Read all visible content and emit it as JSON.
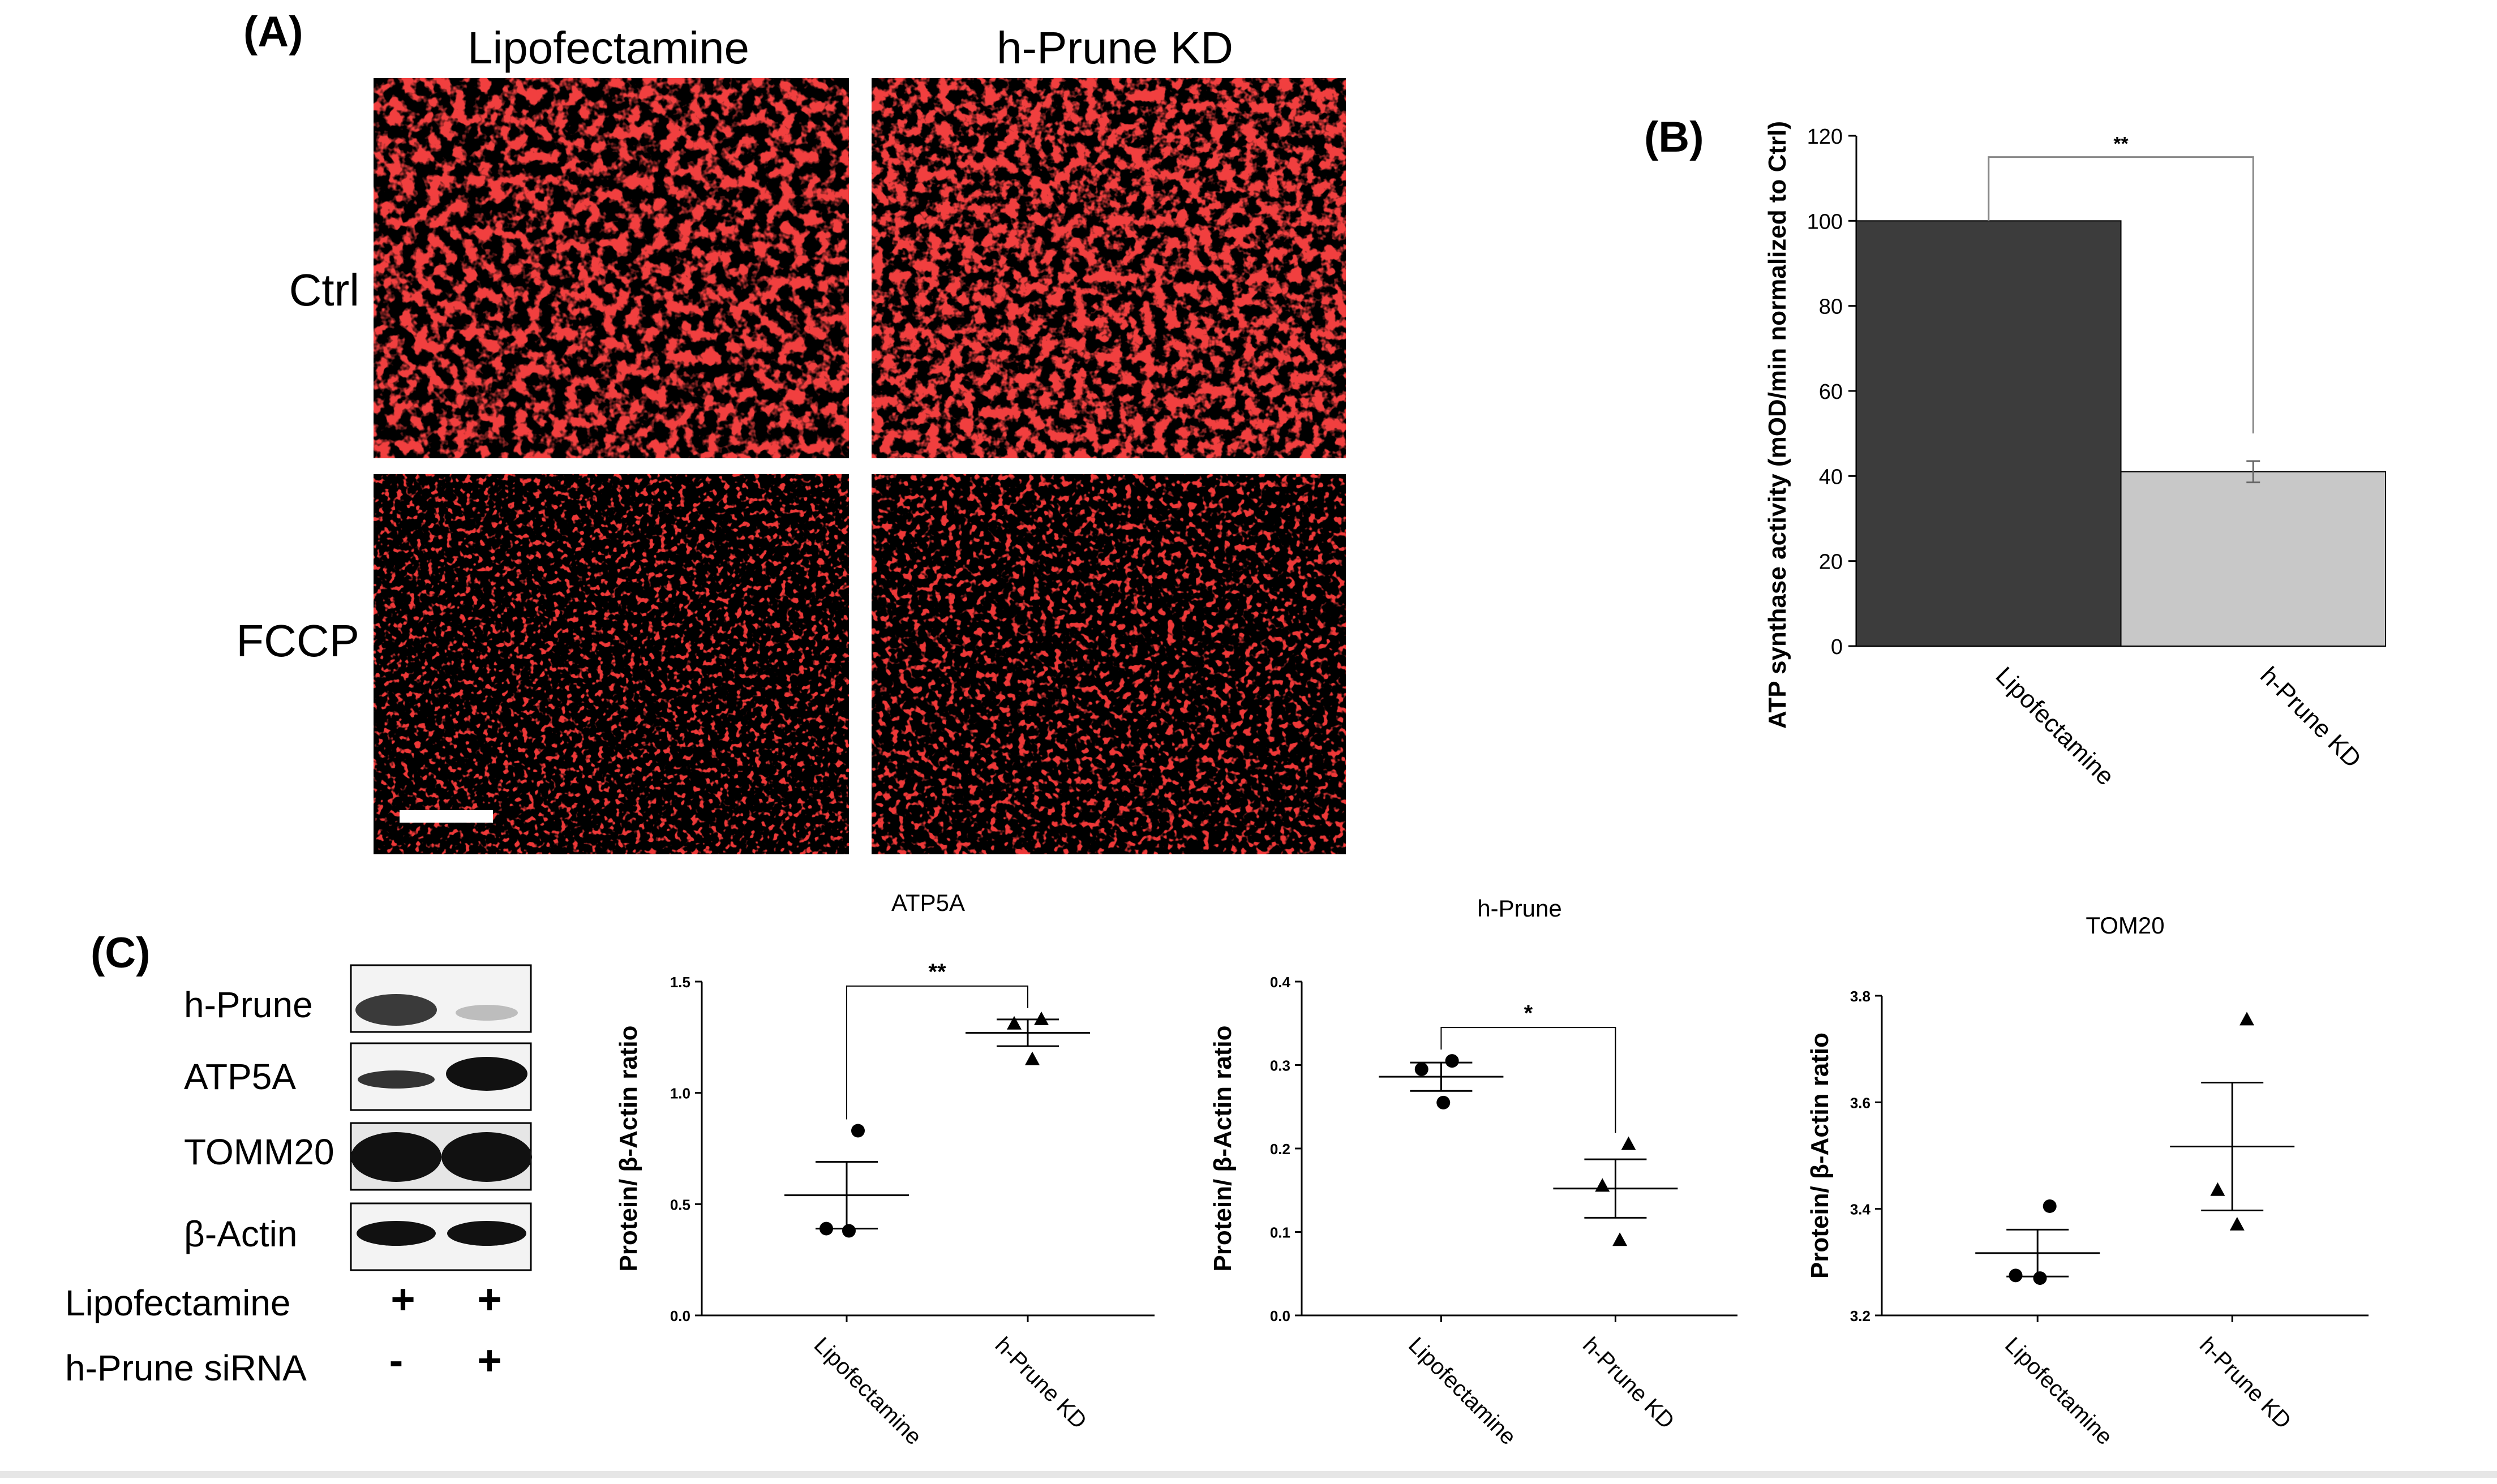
{
  "panel_a": {
    "label": "(A)",
    "columns": [
      "Lipofectamine",
      "h-Prune KD"
    ],
    "rows": [
      "Ctrl",
      "FCCP"
    ],
    "image_color": "#e01010"
  },
  "panel_b": {
    "label": "(B)"
  },
  "panel_c": {
    "label": "(C)",
    "blot_rows": [
      "h-Prune",
      "ATP5A",
      "TOMM20",
      "β-Actin"
    ],
    "treatments": [
      {
        "name": "Lipofectamine",
        "marks": [
          "+",
          "+"
        ]
      },
      {
        "name": "h-Prune siRNA",
        "marks": [
          "-",
          "+"
        ]
      }
    ]
  },
  "chart_data": [
    {
      "type": "bar",
      "panel": "B",
      "categories": [
        "Lipofectamine",
        "h-Prune KD"
      ],
      "values": [
        100,
        41
      ],
      "errors": [
        0,
        2.5
      ],
      "colors": [
        "#3c3c3c",
        "#c8c8c8"
      ],
      "title": "",
      "xlabel": "",
      "ylabel": "ATP synthase activity (mOD/min normalized to Ctrl)",
      "ylim": [
        0,
        120
      ],
      "yticks": [
        0,
        20,
        40,
        60,
        80,
        100,
        120
      ],
      "significance": "**",
      "grid": false
    },
    {
      "type": "scatter",
      "panel": "C-ATP5A",
      "title": "ATP5A",
      "ylabel": "Protein/ β-Actin ratio",
      "categories": [
        "Lipofectamine",
        "h-Prune KD"
      ],
      "ylim": [
        0,
        1.5
      ],
      "yticks": [
        0.0,
        0.5,
        1.0,
        1.5
      ],
      "ytick_labels": [
        "0.0",
        "0.5",
        "1.0",
        "1.5"
      ],
      "series": [
        {
          "category": "Lipofectamine",
          "marker": "circle",
          "points": [
            0.83,
            0.39,
            0.38
          ],
          "mean": 0.54,
          "sem": 0.15
        },
        {
          "category": "h-Prune KD",
          "marker": "triangle",
          "points": [
            1.33,
            1.31,
            1.15
          ],
          "mean": 1.27,
          "sem": 0.06
        }
      ],
      "significance": "**"
    },
    {
      "type": "scatter",
      "panel": "C-hPrune",
      "title": "h-Prune",
      "ylabel": "Protein/ β-Actin ratio",
      "categories": [
        "Lipofectamine",
        "h-Prune KD"
      ],
      "ylim": [
        0,
        0.4
      ],
      "yticks": [
        0.0,
        0.1,
        0.2,
        0.3,
        0.4
      ],
      "ytick_labels": [
        "0.0",
        "0.1",
        "0.2",
        "0.3",
        "0.4"
      ],
      "series": [
        {
          "category": "Lipofectamine",
          "marker": "circle",
          "points": [
            0.305,
            0.295,
            0.255
          ],
          "mean": 0.286,
          "sem": 0.017
        },
        {
          "category": "h-Prune KD",
          "marker": "triangle",
          "points": [
            0.205,
            0.155,
            0.09
          ],
          "mean": 0.152,
          "sem": 0.035
        }
      ],
      "significance": "*"
    },
    {
      "type": "scatter",
      "panel": "C-TOM20",
      "title": "TOM20",
      "ylabel": "Protein/ β-Actin ratio",
      "categories": [
        "Lipofectamine",
        "h-Prune KD"
      ],
      "ylim": [
        3.2,
        3.8
      ],
      "yticks": [
        3.2,
        3.4,
        3.6,
        3.8
      ],
      "ytick_labels": [
        "3.2",
        "3.4",
        "3.6",
        "3.8"
      ],
      "series": [
        {
          "category": "Lipofectamine",
          "marker": "circle",
          "points": [
            3.405,
            3.275,
            3.27
          ],
          "mean": 3.317,
          "sem": 0.044
        },
        {
          "category": "h-Prune KD",
          "marker": "triangle",
          "points": [
            3.755,
            3.435,
            3.37
          ],
          "mean": 3.517,
          "sem": 0.12
        }
      ],
      "significance": ""
    }
  ]
}
